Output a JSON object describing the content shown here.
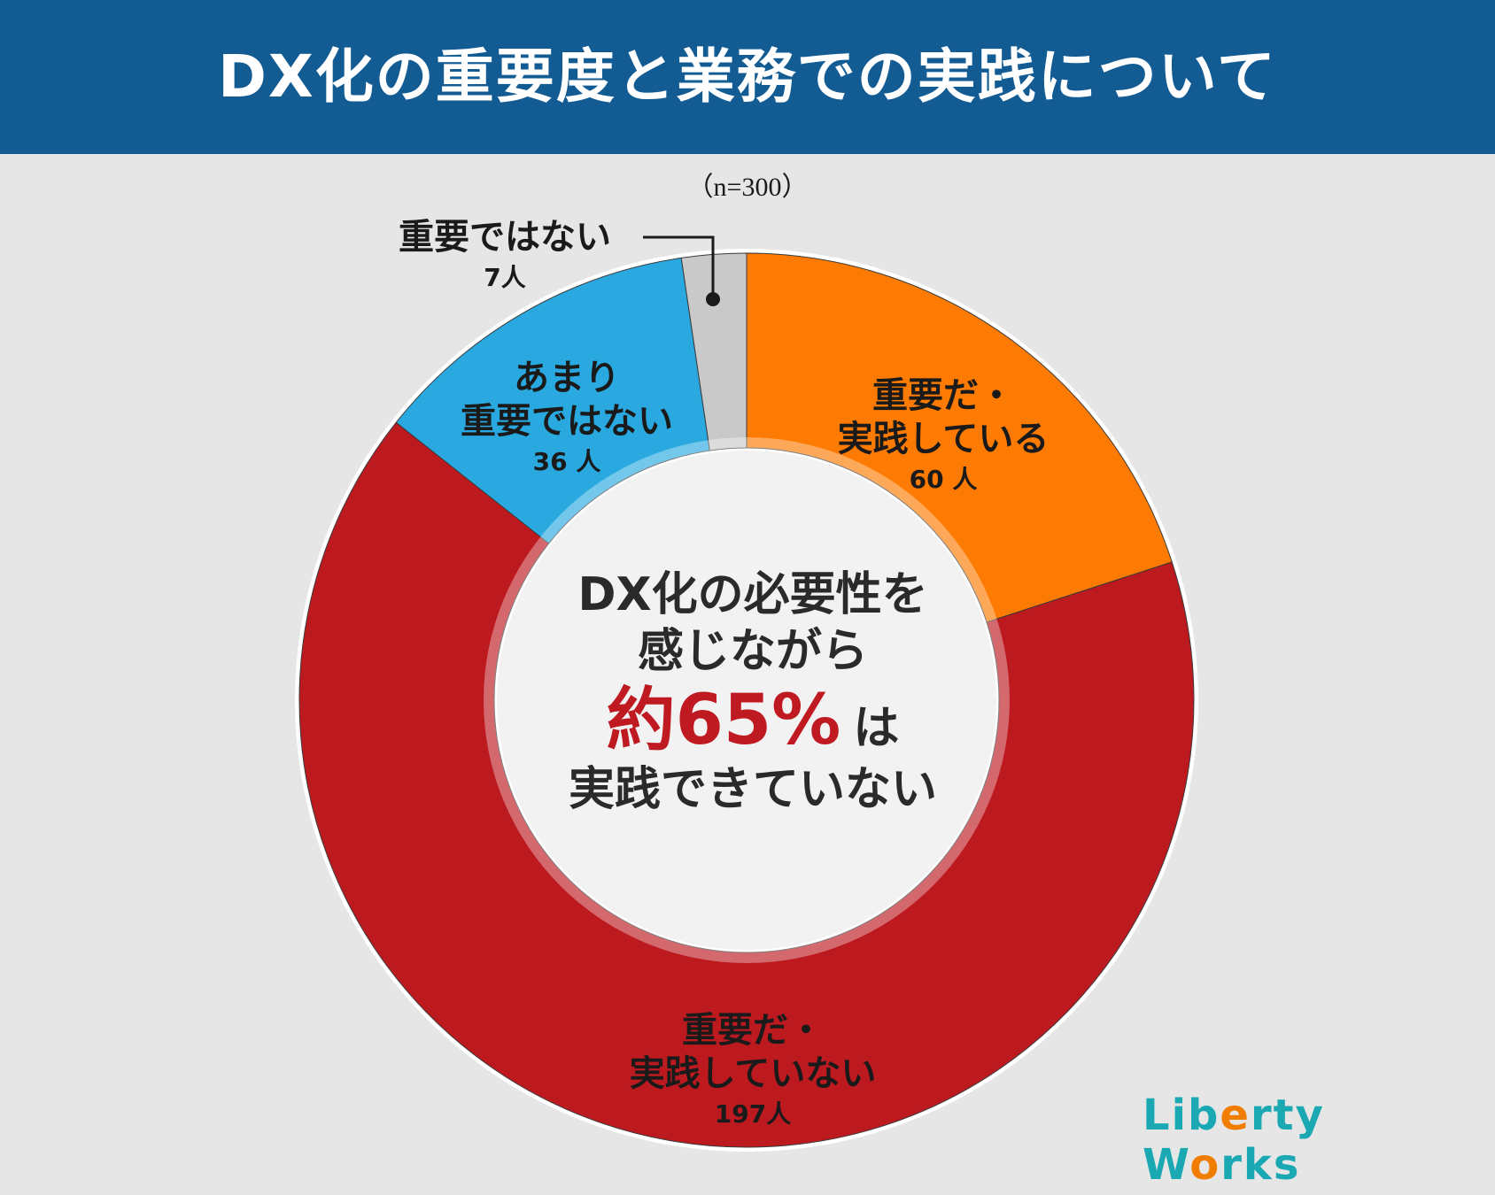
{
  "title": "DX化の重要度と業務での実践について",
  "sample_size": "（n=300）",
  "chart_data": {
    "type": "pie",
    "categories": [
      "重要だ・実践している",
      "重要だ・実践していない",
      "あまり重要ではない",
      "重要ではない"
    ],
    "values": [
      60,
      197,
      36,
      7
    ],
    "colors": [
      "#fd7b02",
      "#bd1a20",
      "#29a9e0",
      "#c9c9c9"
    ],
    "total": 300,
    "unit": "人",
    "donut": true,
    "start_angle": "12 o'clock, clockwise"
  },
  "labels": {
    "practicing": {
      "name": "重要だ・\n実践している",
      "count": "60 人"
    },
    "not_practicing": {
      "name": "重要だ・\n実践していない",
      "count": "197人"
    },
    "not_very_important": {
      "name": "あまり\n重要ではない",
      "count": "36 人"
    },
    "not_important": {
      "name": "重要ではない",
      "count": "7人"
    }
  },
  "center": {
    "line1": "DX化の必要性を",
    "line2": "感じながら",
    "highlight": "約65%",
    "particle": "は",
    "line4": "実践できていない"
  },
  "logo": {
    "part1": "Lib",
    "part2": "e",
    "part3": "rty W",
    "part4": "o",
    "part5": "rks"
  }
}
